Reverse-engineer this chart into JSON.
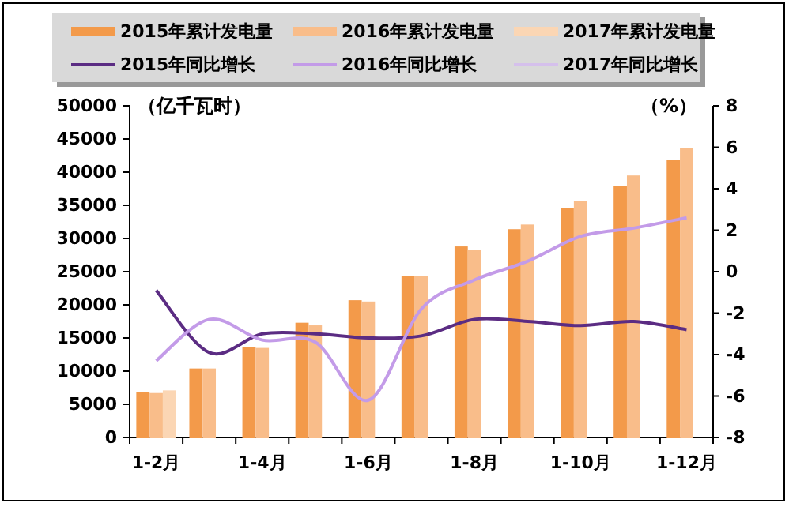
{
  "chart_data": {
    "type": "bar",
    "ylabel": "（亿千瓦时）",
    "y2label": "（%）",
    "legend": "top",
    "grid": false,
    "categories": [
      "1-2月",
      null,
      "1-4月",
      null,
      "1-6月",
      null,
      "1-8月",
      null,
      "1-10月",
      null,
      "1-12月"
    ],
    "ylim": [
      0,
      50000
    ],
    "yticks": [
      0,
      5000,
      10000,
      15000,
      20000,
      25000,
      30000,
      35000,
      40000,
      45000,
      50000
    ],
    "y2lim": [
      -8,
      8
    ],
    "y2ticks": [
      -8,
      -6,
      -4,
      -2,
      0,
      2,
      4,
      6,
      8
    ],
    "series": [
      {
        "name": "2015年累计发电量",
        "color": "#f39a4a",
        "values": [
          6900,
          10400,
          13600,
          17300,
          20700,
          24300,
          28800,
          31400,
          34600,
          37900,
          41900
        ]
      },
      {
        "name": "2016年累计发电量",
        "color": "#f9bd8a",
        "values": [
          6700,
          10400,
          13500,
          16900,
          20500,
          24300,
          28300,
          32100,
          35600,
          39500,
          43600
        ]
      },
      {
        "name": "2017年累计发电量",
        "color": "#fbd6b4",
        "values": [
          7100,
          null,
          null,
          null,
          null,
          null,
          null,
          null,
          null,
          null,
          null
        ]
      },
      {
        "name": "2015年同比增长",
        "type": "line",
        "axis": "y2",
        "color": "#5b2c83",
        "values": [
          -0.9,
          -3.9,
          -3.0,
          -3.0,
          -3.2,
          -3.1,
          -2.3,
          -2.4,
          -2.6,
          -2.4,
          -2.8
        ]
      },
      {
        "name": "2016年同比增长",
        "type": "line",
        "axis": "y2",
        "color": "#c39be8",
        "values": [
          -4.3,
          -2.3,
          -3.3,
          -3.4,
          -6.2,
          -1.8,
          -0.4,
          0.5,
          1.7,
          2.1,
          2.6
        ]
      },
      {
        "name": "2017年同比增长",
        "type": "line",
        "axis": "y2",
        "color": "#d5c0ec",
        "values": [
          null,
          null,
          null,
          null,
          null,
          null,
          null,
          null,
          null,
          null,
          null
        ]
      }
    ]
  }
}
